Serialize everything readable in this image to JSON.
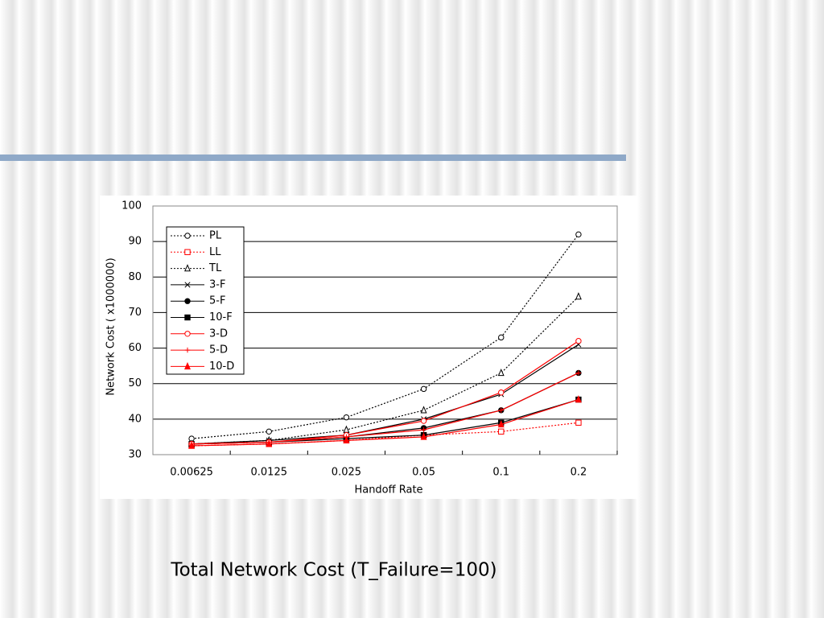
{
  "chart_data": {
    "type": "line",
    "caption": "Total Network Cost (T_Failure=100)",
    "x_label": "Handoff Rate",
    "y_label": "Network Cost ( x1000000)",
    "categories": [
      "0.00625",
      "0.0125",
      "0.025",
      "0.05",
      "0.1",
      "0.2"
    ],
    "ylim": [
      30,
      100
    ],
    "yticks": [
      30,
      40,
      50,
      60,
      70,
      80,
      90,
      100
    ],
    "grid": true,
    "legend_position": "upper left",
    "series": [
      {
        "name": "PL",
        "color": "#000000",
        "dash": "dotted",
        "marker": "open-circle",
        "values": [
          34.5,
          36.5,
          40.5,
          48.5,
          63,
          92
        ]
      },
      {
        "name": "LL",
        "color": "#ff0000",
        "dash": "dotted",
        "marker": "open-square",
        "values": [
          32.5,
          33,
          34,
          35.5,
          36.5,
          39
        ]
      },
      {
        "name": "TL",
        "color": "#000000",
        "dash": "dotted",
        "marker": "open-triangle",
        "values": [
          33,
          34,
          37,
          42.5,
          53,
          74.5
        ]
      },
      {
        "name": "3-F",
        "color": "#000000",
        "dash": "solid",
        "marker": "x",
        "values": [
          33,
          34,
          35.5,
          40,
          47,
          61
        ]
      },
      {
        "name": "5-F",
        "color": "#000000",
        "dash": "solid",
        "marker": "filled-circle",
        "values": [
          33,
          33.5,
          35,
          37.5,
          42.5,
          53
        ]
      },
      {
        "name": "10-F",
        "color": "#000000",
        "dash": "solid",
        "marker": "filled-square",
        "values": [
          33,
          33.5,
          34.5,
          35.5,
          39,
          45.5
        ]
      },
      {
        "name": "3-D",
        "color": "#ff0000",
        "dash": "solid",
        "marker": "open-circle",
        "values": [
          33,
          33.5,
          35.5,
          39.5,
          47.5,
          62
        ]
      },
      {
        "name": "5-D",
        "color": "#ff0000",
        "dash": "solid",
        "marker": "plus",
        "values": [
          33,
          33.5,
          35,
          37,
          42.5,
          53
        ]
      },
      {
        "name": "10-D",
        "color": "#ff0000",
        "dash": "solid",
        "marker": "filled-triangle",
        "values": [
          32.5,
          33,
          34,
          35,
          38.5,
          45.5
        ]
      }
    ]
  }
}
